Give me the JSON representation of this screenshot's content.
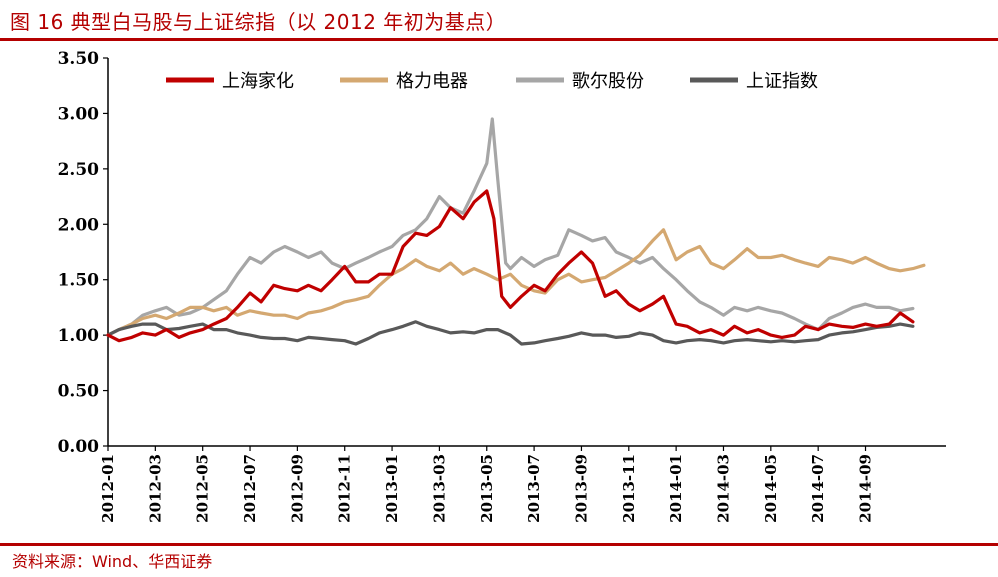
{
  "figure": {
    "title": "图 16   典型白马股与上证综指（以 2012 年初为基点）",
    "source": "资料来源：Wind、华西证券"
  },
  "chart_data": {
    "type": "line",
    "title": "图 16   典型白马股与上证综指（以 2012 年初为基点）",
    "xlabel": "",
    "ylabel": "",
    "ylim": [
      0,
      3.5
    ],
    "yticks": [
      "0.00",
      "0.50",
      "1.00",
      "1.50",
      "2.00",
      "2.50",
      "3.00",
      "3.50"
    ],
    "xlim": [
      "2012-01",
      "2014-12"
    ],
    "xticks": [
      "2012-01",
      "2012-03",
      "2012-05",
      "2012-07",
      "2012-09",
      "2012-11",
      "2013-01",
      "2013-03",
      "2013-05",
      "2013-07",
      "2013-09",
      "2013-11",
      "2014-01",
      "2014-03",
      "2014-05",
      "2014-07",
      "2014-09"
    ],
    "grid": false,
    "legend_position": "top",
    "series": [
      {
        "name": "上海家化",
        "color": "#c00000",
        "points": [
          [
            "2012-01",
            1.0
          ],
          [
            "2012-01-15",
            0.95
          ],
          [
            "2012-02",
            0.98
          ],
          [
            "2012-02-15",
            1.02
          ],
          [
            "2012-03",
            1.0
          ],
          [
            "2012-03-15",
            1.05
          ],
          [
            "2012-04",
            0.98
          ],
          [
            "2012-04-15",
            1.02
          ],
          [
            "2012-05",
            1.05
          ],
          [
            "2012-05-15",
            1.1
          ],
          [
            "2012-06",
            1.15
          ],
          [
            "2012-06-15",
            1.25
          ],
          [
            "2012-07",
            1.38
          ],
          [
            "2012-07-15",
            1.3
          ],
          [
            "2012-08",
            1.45
          ],
          [
            "2012-08-15",
            1.42
          ],
          [
            "2012-09",
            1.4
          ],
          [
            "2012-09-15",
            1.45
          ],
          [
            "2012-10",
            1.4
          ],
          [
            "2012-10-15",
            1.5
          ],
          [
            "2012-11",
            1.62
          ],
          [
            "2012-11-15",
            1.48
          ],
          [
            "2012-12",
            1.48
          ],
          [
            "2012-12-15",
            1.55
          ],
          [
            "2013-01",
            1.55
          ],
          [
            "2013-01-15",
            1.8
          ],
          [
            "2013-02",
            1.92
          ],
          [
            "2013-02-15",
            1.9
          ],
          [
            "2013-03",
            1.98
          ],
          [
            "2013-03-15",
            2.15
          ],
          [
            "2013-04",
            2.05
          ],
          [
            "2013-04-15",
            2.2
          ],
          [
            "2013-05",
            2.3
          ],
          [
            "2013-05-10",
            2.05
          ],
          [
            "2013-05-20",
            1.35
          ],
          [
            "2013-06",
            1.25
          ],
          [
            "2013-06-15",
            1.35
          ],
          [
            "2013-07",
            1.45
          ],
          [
            "2013-07-15",
            1.4
          ],
          [
            "2013-08",
            1.55
          ],
          [
            "2013-08-15",
            1.65
          ],
          [
            "2013-09",
            1.75
          ],
          [
            "2013-09-15",
            1.65
          ],
          [
            "2013-10",
            1.35
          ],
          [
            "2013-10-15",
            1.4
          ],
          [
            "2013-11",
            1.28
          ],
          [
            "2013-11-15",
            1.22
          ],
          [
            "2013-12",
            1.28
          ],
          [
            "2013-12-15",
            1.35
          ],
          [
            "2014-01",
            1.1
          ],
          [
            "2014-01-15",
            1.08
          ],
          [
            "2014-02",
            1.02
          ],
          [
            "2014-02-15",
            1.05
          ],
          [
            "2014-03",
            1.0
          ],
          [
            "2014-03-15",
            1.08
          ],
          [
            "2014-04",
            1.02
          ],
          [
            "2014-04-15",
            1.05
          ],
          [
            "2014-05",
            1.0
          ],
          [
            "2014-05-15",
            0.98
          ],
          [
            "2014-06",
            1.0
          ],
          [
            "2014-06-15",
            1.08
          ],
          [
            "2014-07",
            1.05
          ],
          [
            "2014-07-15",
            1.1
          ],
          [
            "2014-08",
            1.08
          ],
          [
            "2014-08-15",
            1.07
          ],
          [
            "2014-09",
            1.1
          ],
          [
            "2014-09-15",
            1.08
          ],
          [
            "2014-10",
            1.1
          ],
          [
            "2014-10-15",
            1.2
          ],
          [
            "2014-11",
            1.12
          ]
        ]
      },
      {
        "name": "格力电器",
        "color": "#d4a871",
        "points": [
          [
            "2012-01",
            1.0
          ],
          [
            "2012-01-15",
            1.05
          ],
          [
            "2012-02",
            1.1
          ],
          [
            "2012-02-15",
            1.15
          ],
          [
            "2012-03",
            1.18
          ],
          [
            "2012-03-15",
            1.15
          ],
          [
            "2012-04",
            1.2
          ],
          [
            "2012-04-15",
            1.25
          ],
          [
            "2012-05",
            1.25
          ],
          [
            "2012-05-15",
            1.22
          ],
          [
            "2012-06",
            1.25
          ],
          [
            "2012-06-15",
            1.18
          ],
          [
            "2012-07",
            1.22
          ],
          [
            "2012-07-15",
            1.2
          ],
          [
            "2012-08",
            1.18
          ],
          [
            "2012-08-15",
            1.18
          ],
          [
            "2012-09",
            1.15
          ],
          [
            "2012-09-15",
            1.2
          ],
          [
            "2012-10",
            1.22
          ],
          [
            "2012-10-15",
            1.25
          ],
          [
            "2012-11",
            1.3
          ],
          [
            "2012-11-15",
            1.32
          ],
          [
            "2012-12",
            1.35
          ],
          [
            "2012-12-15",
            1.45
          ],
          [
            "2013-01",
            1.55
          ],
          [
            "2013-01-15",
            1.6
          ],
          [
            "2013-02",
            1.68
          ],
          [
            "2013-02-15",
            1.62
          ],
          [
            "2013-03",
            1.58
          ],
          [
            "2013-03-15",
            1.65
          ],
          [
            "2013-04",
            1.55
          ],
          [
            "2013-04-15",
            1.6
          ],
          [
            "2013-05",
            1.55
          ],
          [
            "2013-05-15",
            1.5
          ],
          [
            "2013-06",
            1.55
          ],
          [
            "2013-06-15",
            1.45
          ],
          [
            "2013-07",
            1.4
          ],
          [
            "2013-07-15",
            1.38
          ],
          [
            "2013-08",
            1.5
          ],
          [
            "2013-08-15",
            1.55
          ],
          [
            "2013-09",
            1.48
          ],
          [
            "2013-09-15",
            1.5
          ],
          [
            "2013-10",
            1.52
          ],
          [
            "2013-10-15",
            1.58
          ],
          [
            "2013-11",
            1.65
          ],
          [
            "2013-11-15",
            1.72
          ],
          [
            "2013-12",
            1.85
          ],
          [
            "2013-12-15",
            1.95
          ],
          [
            "2014-01",
            1.68
          ],
          [
            "2014-01-15",
            1.75
          ],
          [
            "2014-02",
            1.8
          ],
          [
            "2014-02-15",
            1.65
          ],
          [
            "2014-03",
            1.6
          ],
          [
            "2014-03-15",
            1.68
          ],
          [
            "2014-04",
            1.78
          ],
          [
            "2014-04-15",
            1.7
          ],
          [
            "2014-05",
            1.7
          ],
          [
            "2014-05-15",
            1.72
          ],
          [
            "2014-06",
            1.68
          ],
          [
            "2014-06-15",
            1.65
          ],
          [
            "2014-07",
            1.62
          ],
          [
            "2014-07-15",
            1.7
          ],
          [
            "2014-08",
            1.68
          ],
          [
            "2014-08-15",
            1.65
          ],
          [
            "2014-09",
            1.7
          ],
          [
            "2014-09-15",
            1.65
          ],
          [
            "2014-10",
            1.6
          ],
          [
            "2014-10-15",
            1.58
          ],
          [
            "2014-11",
            1.6
          ],
          [
            "2014-11-15",
            1.63
          ]
        ]
      },
      {
        "name": "歌尔股份",
        "color": "#a6a6a6",
        "points": [
          [
            "2012-01",
            1.0
          ],
          [
            "2012-01-15",
            1.05
          ],
          [
            "2012-02",
            1.1
          ],
          [
            "2012-02-15",
            1.18
          ],
          [
            "2012-03",
            1.22
          ],
          [
            "2012-03-15",
            1.25
          ],
          [
            "2012-04",
            1.18
          ],
          [
            "2012-04-15",
            1.2
          ],
          [
            "2012-05",
            1.25
          ],
          [
            "2012-05-15",
            1.32
          ],
          [
            "2012-06",
            1.4
          ],
          [
            "2012-06-15",
            1.55
          ],
          [
            "2012-07",
            1.7
          ],
          [
            "2012-07-15",
            1.65
          ],
          [
            "2012-08",
            1.75
          ],
          [
            "2012-08-15",
            1.8
          ],
          [
            "2012-09",
            1.75
          ],
          [
            "2012-09-15",
            1.7
          ],
          [
            "2012-10",
            1.75
          ],
          [
            "2012-10-15",
            1.65
          ],
          [
            "2012-11",
            1.6
          ],
          [
            "2012-11-15",
            1.65
          ],
          [
            "2012-12",
            1.7
          ],
          [
            "2012-12-15",
            1.75
          ],
          [
            "2013-01",
            1.8
          ],
          [
            "2013-01-15",
            1.9
          ],
          [
            "2013-02",
            1.95
          ],
          [
            "2013-02-15",
            2.05
          ],
          [
            "2013-03",
            2.25
          ],
          [
            "2013-03-15",
            2.15
          ],
          [
            "2013-04",
            2.1
          ],
          [
            "2013-04-15",
            2.3
          ],
          [
            "2013-05",
            2.55
          ],
          [
            "2013-05-08",
            2.95
          ],
          [
            "2013-05-15",
            2.4
          ],
          [
            "2013-05-25",
            1.65
          ],
          [
            "2013-06",
            1.6
          ],
          [
            "2013-06-15",
            1.7
          ],
          [
            "2013-07",
            1.62
          ],
          [
            "2013-07-15",
            1.68
          ],
          [
            "2013-08",
            1.72
          ],
          [
            "2013-08-15",
            1.95
          ],
          [
            "2013-09",
            1.9
          ],
          [
            "2013-09-15",
            1.85
          ],
          [
            "2013-10",
            1.88
          ],
          [
            "2013-10-15",
            1.75
          ],
          [
            "2013-11",
            1.7
          ],
          [
            "2013-11-15",
            1.65
          ],
          [
            "2013-12",
            1.7
          ],
          [
            "2013-12-15",
            1.6
          ],
          [
            "2014-01",
            1.5
          ],
          [
            "2014-01-15",
            1.4
          ],
          [
            "2014-02",
            1.3
          ],
          [
            "2014-02-15",
            1.25
          ],
          [
            "2014-03",
            1.18
          ],
          [
            "2014-03-15",
            1.25
          ],
          [
            "2014-04",
            1.22
          ],
          [
            "2014-04-15",
            1.25
          ],
          [
            "2014-05",
            1.22
          ],
          [
            "2014-05-15",
            1.2
          ],
          [
            "2014-06",
            1.15
          ],
          [
            "2014-06-15",
            1.1
          ],
          [
            "2014-07",
            1.05
          ],
          [
            "2014-07-15",
            1.15
          ],
          [
            "2014-08",
            1.2
          ],
          [
            "2014-08-15",
            1.25
          ],
          [
            "2014-09",
            1.28
          ],
          [
            "2014-09-15",
            1.25
          ],
          [
            "2014-10",
            1.25
          ],
          [
            "2014-10-15",
            1.22
          ],
          [
            "2014-11",
            1.24
          ]
        ]
      },
      {
        "name": "上证指数",
        "color": "#595959",
        "points": [
          [
            "2012-01",
            1.0
          ],
          [
            "2012-01-15",
            1.05
          ],
          [
            "2012-02",
            1.08
          ],
          [
            "2012-02-15",
            1.1
          ],
          [
            "2012-03",
            1.1
          ],
          [
            "2012-03-15",
            1.05
          ],
          [
            "2012-04",
            1.06
          ],
          [
            "2012-04-15",
            1.08
          ],
          [
            "2012-05",
            1.1
          ],
          [
            "2012-05-15",
            1.05
          ],
          [
            "2012-06",
            1.05
          ],
          [
            "2012-06-15",
            1.02
          ],
          [
            "2012-07",
            1.0
          ],
          [
            "2012-07-15",
            0.98
          ],
          [
            "2012-08",
            0.97
          ],
          [
            "2012-08-15",
            0.97
          ],
          [
            "2012-09",
            0.95
          ],
          [
            "2012-09-15",
            0.98
          ],
          [
            "2012-10",
            0.97
          ],
          [
            "2012-10-15",
            0.96
          ],
          [
            "2012-11",
            0.95
          ],
          [
            "2012-11-15",
            0.92
          ],
          [
            "2012-12",
            0.97
          ],
          [
            "2012-12-15",
            1.02
          ],
          [
            "2013-01",
            1.05
          ],
          [
            "2013-01-15",
            1.08
          ],
          [
            "2013-02",
            1.12
          ],
          [
            "2013-02-15",
            1.08
          ],
          [
            "2013-03",
            1.05
          ],
          [
            "2013-03-15",
            1.02
          ],
          [
            "2013-04",
            1.03
          ],
          [
            "2013-04-15",
            1.02
          ],
          [
            "2013-05",
            1.05
          ],
          [
            "2013-05-15",
            1.05
          ],
          [
            "2013-06",
            1.0
          ],
          [
            "2013-06-15",
            0.92
          ],
          [
            "2013-07",
            0.93
          ],
          [
            "2013-07-15",
            0.95
          ],
          [
            "2013-08",
            0.97
          ],
          [
            "2013-08-15",
            0.99
          ],
          [
            "2013-09",
            1.02
          ],
          [
            "2013-09-15",
            1.0
          ],
          [
            "2013-10",
            1.0
          ],
          [
            "2013-10-15",
            0.98
          ],
          [
            "2013-11",
            0.99
          ],
          [
            "2013-11-15",
            1.02
          ],
          [
            "2013-12",
            1.0
          ],
          [
            "2013-12-15",
            0.95
          ],
          [
            "2014-01",
            0.93
          ],
          [
            "2014-01-15",
            0.95
          ],
          [
            "2014-02",
            0.96
          ],
          [
            "2014-02-15",
            0.95
          ],
          [
            "2014-03",
            0.93
          ],
          [
            "2014-03-15",
            0.95
          ],
          [
            "2014-04",
            0.96
          ],
          [
            "2014-04-15",
            0.95
          ],
          [
            "2014-05",
            0.94
          ],
          [
            "2014-05-15",
            0.95
          ],
          [
            "2014-06",
            0.94
          ],
          [
            "2014-06-15",
            0.95
          ],
          [
            "2014-07",
            0.96
          ],
          [
            "2014-07-15",
            1.0
          ],
          [
            "2014-08",
            1.02
          ],
          [
            "2014-08-15",
            1.03
          ],
          [
            "2014-09",
            1.05
          ],
          [
            "2014-09-15",
            1.07
          ],
          [
            "2014-10",
            1.08
          ],
          [
            "2014-10-15",
            1.1
          ],
          [
            "2014-11",
            1.08
          ]
        ]
      }
    ]
  }
}
